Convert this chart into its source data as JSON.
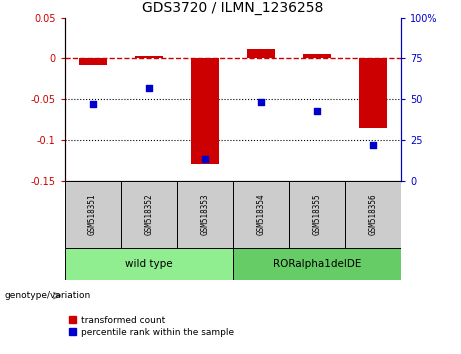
{
  "title": "GDS3720 / ILMN_1236258",
  "samples": [
    "GSM518351",
    "GSM518352",
    "GSM518353",
    "GSM518354",
    "GSM518355",
    "GSM518356"
  ],
  "red_values": [
    -0.008,
    0.003,
    -0.13,
    0.012,
    0.005,
    -0.085
  ],
  "blue_values_pct": [
    47,
    57,
    13,
    48,
    43,
    22
  ],
  "groups": [
    {
      "label": "wild type",
      "indices": [
        0,
        1,
        2
      ],
      "color": "#90EE90"
    },
    {
      "label": "RORalpha1delDE",
      "indices": [
        3,
        4,
        5
      ],
      "color": "#66CC66"
    }
  ],
  "ylim_left": [
    -0.15,
    0.05
  ],
  "ylim_right": [
    0,
    100
  ],
  "yticks_left": [
    -0.15,
    -0.1,
    -0.05,
    0.0,
    0.05
  ],
  "yticks_right": [
    0,
    25,
    50,
    75,
    100
  ],
  "ytick_labels_left": [
    "-0.15",
    "-0.1",
    "-0.05",
    "0",
    "0.05"
  ],
  "ytick_labels_right": [
    "0",
    "25",
    "50",
    "75",
    "100%"
  ],
  "hlines": [
    -0.05,
    -0.1
  ],
  "dashed_line_y": 0.0,
  "red_color": "#CC0000",
  "blue_color": "#0000CC",
  "dashed_color": "#CC0000",
  "legend_label_red": "transformed count",
  "legend_label_blue": "percentile rank within the sample",
  "genotype_label": "genotype/variation",
  "bar_width": 0.5,
  "sample_box_color": "#CCCCCC",
  "fig_bg": "#FFFFFF"
}
